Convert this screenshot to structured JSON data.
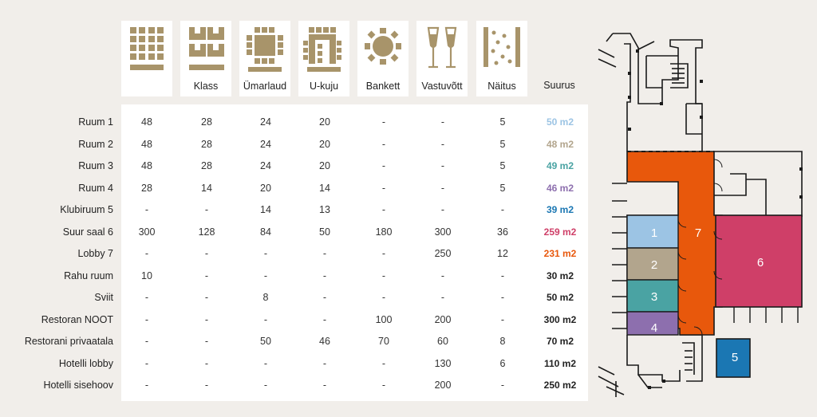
{
  "colors": {
    "icon": "#a8946a",
    "ruum1": "#9cc4e4",
    "ruum2": "#b2a58d",
    "ruum3": "#4aa3a3",
    "ruum4": "#8d6fae",
    "klubiruum5": "#1b77b3",
    "suursaal6": "#cf3f68",
    "lobby7": "#e8580c",
    "default_size": "#222222"
  },
  "header": {
    "icons": [
      {
        "icon": "theatre-icon",
        "label": ""
      },
      {
        "icon": "classroom-icon",
        "label": "Klass"
      },
      {
        "icon": "round-table-icon",
        "label": "Ümarlaud"
      },
      {
        "icon": "u-shape-icon",
        "label": "U-kuju"
      },
      {
        "icon": "banquet-icon",
        "label": "Bankett"
      },
      {
        "icon": "reception-icon",
        "label": "Vastuvõtt"
      },
      {
        "icon": "exhibition-icon",
        "label": "Näitus"
      }
    ],
    "size_label": "Suurus"
  },
  "rows": [
    {
      "name": "Ruum 1",
      "values": [
        "48",
        "28",
        "24",
        "20",
        "-",
        "-",
        "5"
      ],
      "size": "50 m2",
      "color": "#9cc4e4"
    },
    {
      "name": "Ruum 2",
      "values": [
        "48",
        "28",
        "24",
        "20",
        "-",
        "-",
        "5"
      ],
      "size": "48 m2",
      "color": "#b2a58d"
    },
    {
      "name": "Ruum 3",
      "values": [
        "48",
        "28",
        "24",
        "20",
        "-",
        "-",
        "5"
      ],
      "size": "49 m2",
      "color": "#4aa3a3"
    },
    {
      "name": "Ruum 4",
      "values": [
        "28",
        "14",
        "20",
        "14",
        "-",
        "-",
        "5"
      ],
      "size": "46 m2",
      "color": "#8d6fae"
    },
    {
      "name": "Klubiruum 5",
      "values": [
        "-",
        "-",
        "14",
        "13",
        "-",
        "-",
        "-"
      ],
      "size": "39 m2",
      "color": "#1b77b3"
    },
    {
      "name": "Suur saal 6",
      "values": [
        "300",
        "128",
        "84",
        "50",
        "180",
        "300",
        "36"
      ],
      "size": "259 m2",
      "color": "#cf3f68"
    },
    {
      "name": "Lobby 7",
      "values": [
        "-",
        "-",
        "-",
        "-",
        "-",
        "250",
        "12"
      ],
      "size": "231 m2",
      "color": "#e8580c"
    },
    {
      "name": "Rahu ruum",
      "values": [
        "10",
        "-",
        "-",
        "-",
        "-",
        "-",
        "-"
      ],
      "size": "30 m2",
      "color": "#222222"
    },
    {
      "name": "Sviit",
      "values": [
        "-",
        "-",
        "8",
        "-",
        "-",
        "-",
        "-"
      ],
      "size": "50 m2",
      "color": "#222222"
    },
    {
      "name": "Restoran NOOT",
      "values": [
        "-",
        "-",
        "-",
        "-",
        "100",
        "200",
        "-"
      ],
      "size": "300 m2",
      "color": "#222222"
    },
    {
      "name": "Restorani privaatala",
      "values": [
        "-",
        "-",
        "50",
        "46",
        "70",
        "60",
        "8"
      ],
      "size": "70 m2",
      "color": "#222222"
    },
    {
      "name": "Hotelli lobby",
      "values": [
        "-",
        "-",
        "-",
        "-",
        "-",
        "130",
        "6"
      ],
      "size": "110 m2",
      "color": "#222222"
    },
    {
      "name": "Hotelli sisehoov",
      "values": [
        "-",
        "-",
        "-",
        "-",
        "-",
        "200",
        "-"
      ],
      "size": "250 m2",
      "color": "#222222"
    }
  ],
  "floorplan": {
    "rooms": [
      {
        "number": "1",
        "color": "#9cc4e4"
      },
      {
        "number": "2",
        "color": "#b2a58d"
      },
      {
        "number": "3",
        "color": "#4aa3a3"
      },
      {
        "number": "4",
        "color": "#8d6fae"
      },
      {
        "number": "5",
        "color": "#1b77b3"
      },
      {
        "number": "6",
        "color": "#cf3f68"
      },
      {
        "number": "7",
        "color": "#e8580c"
      }
    ]
  }
}
